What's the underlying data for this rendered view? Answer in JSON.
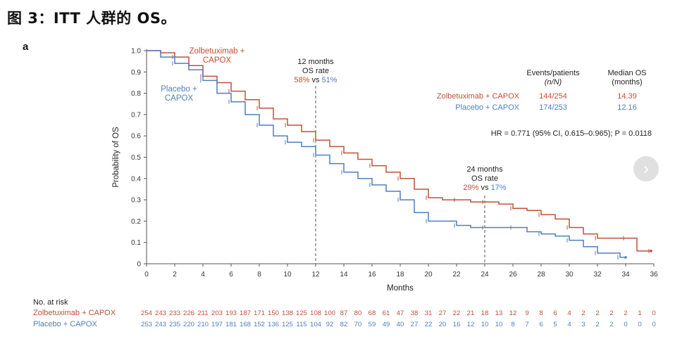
{
  "figure_title": "图 3：ITT 人群的 OS。",
  "panel_label": "a",
  "nav": {
    "next_icon": "›"
  },
  "chart_data": {
    "type": "line",
    "subtype": "kaplan-meier",
    "xlabel": "Months",
    "ylabel": "Probability of OS",
    "xlim": [
      0,
      36
    ],
    "ylim": [
      0,
      1.0
    ],
    "x_ticks": [
      0,
      2,
      4,
      6,
      8,
      10,
      12,
      14,
      16,
      18,
      20,
      22,
      24,
      26,
      28,
      30,
      32,
      34,
      36
    ],
    "y_ticks": [
      0,
      0.1,
      0.2,
      0.3,
      0.4,
      0.5,
      0.6,
      0.7,
      0.8,
      0.9,
      1.0
    ],
    "y_tick_labels": [
      "0",
      "0.1",
      "0.2",
      "0.3",
      "0.4",
      "0.5",
      "0.6",
      "0.7",
      "0.8",
      "0.9",
      "1.0"
    ],
    "series": [
      {
        "name": "Zolbetuximab + CAPOX",
        "color": "#c0503a",
        "label_lines": [
          "Zolbetuximab +",
          "CAPOX"
        ],
        "points": [
          [
            0,
            1.0
          ],
          [
            1,
            0.99
          ],
          [
            2,
            0.97
          ],
          [
            3,
            0.93
          ],
          [
            4,
            0.88
          ],
          [
            5,
            0.85
          ],
          [
            6,
            0.81
          ],
          [
            7,
            0.77
          ],
          [
            8,
            0.73
          ],
          [
            9,
            0.68
          ],
          [
            10,
            0.65
          ],
          [
            11,
            0.62
          ],
          [
            12,
            0.58
          ],
          [
            13,
            0.55
          ],
          [
            14,
            0.52
          ],
          [
            15,
            0.49
          ],
          [
            16,
            0.46
          ],
          [
            17,
            0.43
          ],
          [
            18,
            0.4
          ],
          [
            19,
            0.35
          ],
          [
            20,
            0.31
          ],
          [
            21,
            0.3
          ],
          [
            22,
            0.3
          ],
          [
            23,
            0.29
          ],
          [
            24,
            0.29
          ],
          [
            25,
            0.28
          ],
          [
            26,
            0.26
          ],
          [
            27,
            0.25
          ],
          [
            28,
            0.23
          ],
          [
            29,
            0.21
          ],
          [
            30,
            0.17
          ],
          [
            31,
            0.14
          ],
          [
            32,
            0.12
          ],
          [
            33,
            0.12
          ],
          [
            34,
            0.12
          ],
          [
            34.8,
            0.06
          ],
          [
            35.8,
            0.06
          ]
        ]
      },
      {
        "name": "Placebo + CAPOX",
        "color": "#4f7fc0",
        "label_lines": [
          "Placebo +",
          "CAPOX"
        ],
        "points": [
          [
            0,
            1.0
          ],
          [
            1,
            0.97
          ],
          [
            2,
            0.94
          ],
          [
            3,
            0.91
          ],
          [
            4,
            0.86
          ],
          [
            5,
            0.8
          ],
          [
            6,
            0.76
          ],
          [
            7,
            0.7
          ],
          [
            8,
            0.65
          ],
          [
            9,
            0.6
          ],
          [
            10,
            0.57
          ],
          [
            11,
            0.55
          ],
          [
            12,
            0.51
          ],
          [
            13,
            0.47
          ],
          [
            14,
            0.43
          ],
          [
            15,
            0.4
          ],
          [
            16,
            0.37
          ],
          [
            17,
            0.34
          ],
          [
            18,
            0.3
          ],
          [
            19,
            0.24
          ],
          [
            20,
            0.2
          ],
          [
            21,
            0.2
          ],
          [
            22,
            0.18
          ],
          [
            23,
            0.17
          ],
          [
            24,
            0.17
          ],
          [
            25,
            0.17
          ],
          [
            26,
            0.17
          ],
          [
            27,
            0.15
          ],
          [
            28,
            0.14
          ],
          [
            29,
            0.13
          ],
          [
            30,
            0.11
          ],
          [
            31,
            0.08
          ],
          [
            32,
            0.05
          ],
          [
            33,
            0.05
          ],
          [
            33.6,
            0.03
          ],
          [
            34,
            0.03
          ]
        ]
      }
    ],
    "legend_table": {
      "col_events": [
        "Events/patients",
        "(n/N)"
      ],
      "col_median": [
        "Median OS",
        "(months)"
      ],
      "rows": [
        {
          "name": "Zolbetuximab + CAPOX",
          "events": "144/254",
          "median": "14.39",
          "color": "#c0503a"
        },
        {
          "name": "Placebo + CAPOX",
          "events": "174/253",
          "median": "12.16",
          "color": "#4f7fc0"
        }
      ]
    },
    "hr_text": "HR = 0.771 (95% CI, 0.615–0.965); P = 0.0118",
    "annotations": [
      {
        "x": 12,
        "title_lines": [
          "12 months",
          "OS rate"
        ],
        "zolb": "58%",
        "placebo": "51%",
        "vs": "vs"
      },
      {
        "x": 24,
        "title_lines": [
          "24 months",
          "OS rate"
        ],
        "zolb": "29%",
        "placebo": "17%",
        "vs": "vs"
      }
    ],
    "risk_table": {
      "title": "No. at risk",
      "rows": [
        {
          "name": "Zolbetuximab + CAPOX",
          "color": "#c0503a",
          "values": [
            "254",
            "243",
            "233",
            "226",
            "211",
            "203",
            "193",
            "187",
            "171",
            "150",
            "138",
            "125",
            "108",
            "100",
            "87",
            "80",
            "68",
            "61",
            "47",
            "38",
            "31",
            "27",
            "22",
            "21",
            "18",
            "13",
            "12",
            "9",
            "8",
            "6",
            "4",
            "2",
            "2",
            "2",
            "2",
            "1",
            "0"
          ]
        },
        {
          "name": "Placebo + CAPOX",
          "color": "#4f7fc0",
          "values": [
            "253",
            "243",
            "235",
            "220",
            "210",
            "197",
            "181",
            "168",
            "152",
            "136",
            "125",
            "115",
            "104",
            "92",
            "82",
            "70",
            "59",
            "49",
            "40",
            "27",
            "22",
            "20",
            "16",
            "12",
            "10",
            "10",
            "8",
            "7",
            "6",
            "5",
            "4",
            "3",
            "2",
            "2",
            "0",
            "0",
            "0"
          ]
        }
      ]
    }
  }
}
